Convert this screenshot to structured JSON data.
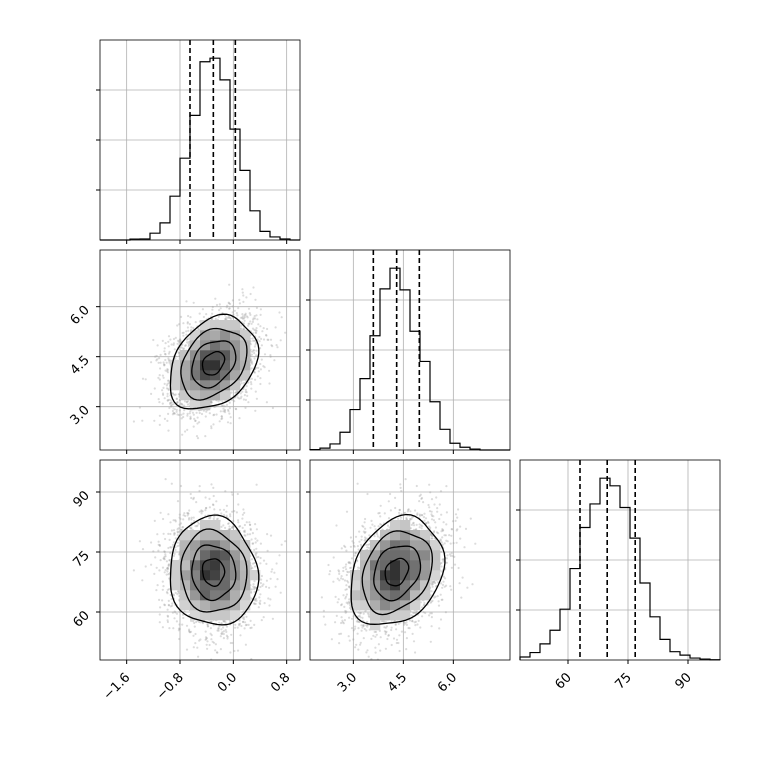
{
  "chart_data": {
    "type": "corner",
    "parameters": [
      {
        "name": "",
        "range": [
          -2.0,
          1.0
        ],
        "ticks": [
          -1.6,
          -0.8,
          0.0,
          0.8
        ],
        "tick_labels": [
          "−1.6",
          "−0.8",
          "0.0",
          "0.8"
        ],
        "mean": -0.3,
        "sd": 0.33,
        "quantiles": [
          -0.65,
          -0.3,
          0.03
        ]
      },
      {
        "name": "",
        "range": [
          1.7,
          7.7
        ],
        "ticks": [
          3.0,
          4.5,
          6.0
        ],
        "tick_labels": [
          "3.0",
          "4.5",
          "6.0"
        ],
        "mean": 4.3,
        "sd": 0.7,
        "quantiles": [
          3.6,
          4.3,
          4.98
        ]
      },
      {
        "name": "",
        "range": [
          48,
          98
        ],
        "ticks": [
          60,
          75,
          90
        ],
        "tick_labels": [
          "60",
          "75",
          "90"
        ],
        "mean": 70,
        "sd": 6.8,
        "quantiles": [
          63,
          69.8,
          76.8
        ]
      }
    ],
    "correlations": [
      [
        1,
        0.3,
        -0.05
      ],
      [
        0.3,
        1,
        0.25
      ],
      [
        -0.05,
        0.25,
        1
      ]
    ],
    "histogram_bins": 20,
    "contour_levels": 4,
    "grid": true,
    "quantile_lines": "dashed"
  }
}
